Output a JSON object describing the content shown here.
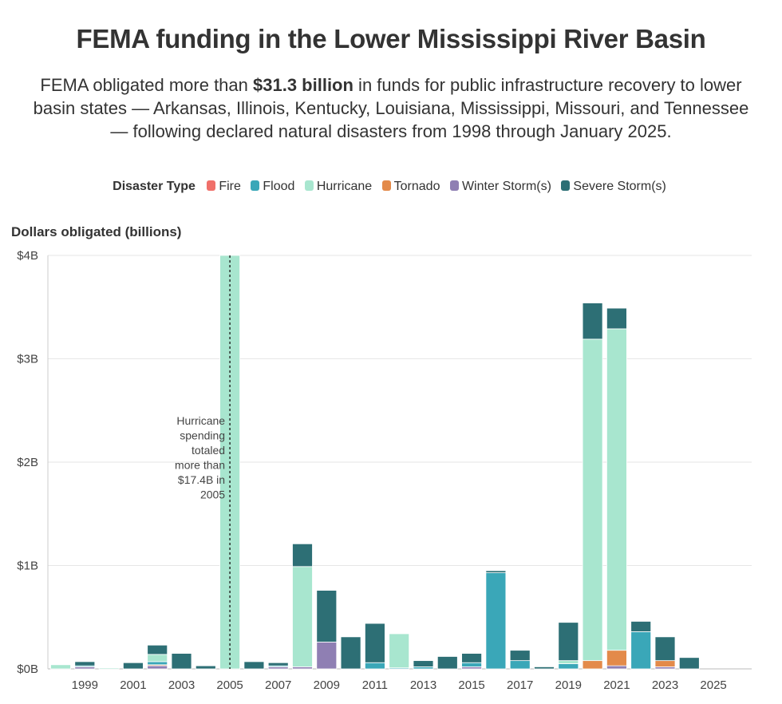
{
  "header": {
    "title": "FEMA funding in the Lower Mississippi River Basin",
    "subtitle_pre": "FEMA obligated more than ",
    "subtitle_bold": "$31.3 billion",
    "subtitle_post": " in funds for public infrastructure recovery to lower basin states — Arkansas, Illinois, Kentucky, Louisiana, Mississippi, Missouri, and Tennessee — following declared natural disasters from 1998 through January 2025."
  },
  "legend": {
    "title": "Disaster Type",
    "items": [
      {
        "label": "Fire",
        "color": "#f0706a"
      },
      {
        "label": "Flood",
        "color": "#3aa7b8"
      },
      {
        "label": "Hurricane",
        "color": "#a8e6cf"
      },
      {
        "label": "Tornado",
        "color": "#e38a4a"
      },
      {
        "label": "Winter Storm(s)",
        "color": "#8f7fb3"
      },
      {
        "label": "Severe Storm(s)",
        "color": "#2d6f75"
      }
    ]
  },
  "chart_data": {
    "type": "bar",
    "stacked": true,
    "ylabel": "Dollars obligated (billions)",
    "ylim": [
      0,
      4
    ],
    "yticks": [
      {
        "value": 0,
        "label": "$0B"
      },
      {
        "value": 1,
        "label": "$1B"
      },
      {
        "value": 2,
        "label": "$2B"
      },
      {
        "value": 3,
        "label": "$3B"
      },
      {
        "value": 4,
        "label": "$4B"
      }
    ],
    "categories": [
      "1998",
      "1999",
      "2000",
      "2001",
      "2002",
      "2003",
      "2004",
      "2005",
      "2006",
      "2007",
      "2008",
      "2009",
      "2010",
      "2011",
      "2012",
      "2013",
      "2014",
      "2015",
      "2016",
      "2017",
      "2018",
      "2019",
      "2020",
      "2021",
      "2022",
      "2023",
      "2024",
      "2025"
    ],
    "xtick_labels": [
      "1999",
      "2001",
      "2003",
      "2005",
      "2007",
      "2009",
      "2011",
      "2013",
      "2015",
      "2017",
      "2019",
      "2021",
      "2023",
      "2025"
    ],
    "series": [
      {
        "name": "Fire",
        "color": "#f0706a",
        "values": [
          0,
          0,
          0,
          0,
          0,
          0,
          0,
          0,
          0,
          0,
          0,
          0,
          0,
          0,
          0,
          0,
          0,
          0,
          0,
          0,
          0,
          0,
          0,
          0,
          0,
          0,
          0,
          0
        ]
      },
      {
        "name": "Winter Storm(s)",
        "color": "#8f7fb3",
        "values": [
          0,
          0.02,
          0,
          0,
          0.03,
          0,
          0,
          0,
          0,
          0.02,
          0.02,
          0.26,
          0,
          0,
          0,
          0,
          0,
          0.02,
          0,
          0,
          0,
          0,
          0,
          0.03,
          0,
          0.02,
          0,
          0
        ]
      },
      {
        "name": "Tornado",
        "color": "#e38a4a",
        "values": [
          0,
          0,
          0,
          0,
          0.01,
          0,
          0,
          0,
          0,
          0,
          0,
          0,
          0,
          0,
          0,
          0,
          0,
          0,
          0,
          0,
          0,
          0,
          0.08,
          0.15,
          0,
          0.06,
          0,
          0
        ]
      },
      {
        "name": "Flood",
        "color": "#3aa7b8",
        "values": [
          0,
          0.01,
          0,
          0,
          0.03,
          0,
          0,
          0,
          0,
          0.01,
          0,
          0,
          0,
          0.06,
          0.01,
          0.02,
          0,
          0.04,
          0.93,
          0.08,
          0,
          0.05,
          0,
          0,
          0.36,
          0,
          0,
          0
        ]
      },
      {
        "name": "Hurricane",
        "color": "#a8e6cf",
        "values": [
          0.04,
          0,
          0.01,
          0,
          0.07,
          0,
          0,
          4.0,
          0,
          0,
          0.97,
          0,
          0,
          0,
          0.33,
          0,
          0,
          0,
          0,
          0,
          0,
          0.03,
          3.11,
          3.11,
          0,
          0,
          0,
          0
        ]
      },
      {
        "name": "Severe Storm(s)",
        "color": "#2d6f75",
        "values": [
          0,
          0.04,
          0,
          0.06,
          0.09,
          0.15,
          0.03,
          0,
          0.07,
          0.03,
          0.22,
          0.5,
          0.31,
          0.38,
          0,
          0.06,
          0.12,
          0.09,
          0.02,
          0.1,
          0.02,
          0.37,
          0.35,
          0.2,
          0.1,
          0.23,
          0.11,
          0
        ]
      }
    ],
    "annotation": {
      "text_lines": [
        "Hurricane",
        "spending",
        "totaled",
        "more than",
        "$17.4B in",
        "2005"
      ],
      "year": "2005"
    }
  }
}
